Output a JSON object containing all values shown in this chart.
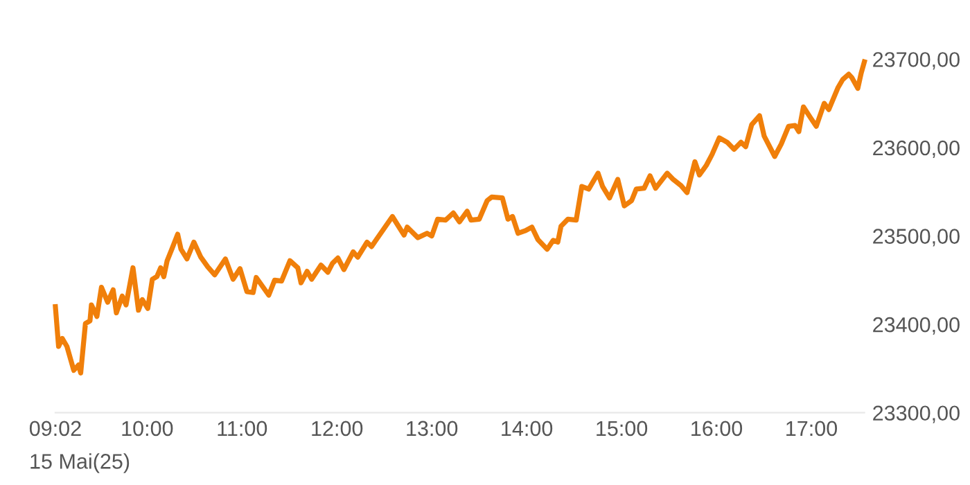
{
  "chart_data": {
    "type": "line",
    "color": "#f07f0a",
    "x": [
      9.0333,
      9.067,
      9.106,
      9.155,
      9.227,
      9.277,
      9.3,
      9.35,
      9.398,
      9.413,
      9.471,
      9.519,
      9.584,
      9.642,
      9.676,
      9.738,
      9.778,
      9.851,
      9.909,
      9.949,
      10.007,
      10.055,
      10.103,
      10.143,
      10.176,
      10.211,
      10.264,
      10.322,
      10.357,
      10.42,
      10.493,
      10.566,
      10.639,
      10.712,
      10.825,
      10.906,
      10.979,
      11.052,
      11.117,
      11.15,
      11.282,
      11.344,
      11.417,
      11.505,
      11.588,
      11.622,
      11.686,
      11.734,
      11.832,
      11.905,
      11.953,
      12.011,
      12.074,
      12.172,
      12.22,
      12.318,
      12.366,
      12.416,
      12.585,
      12.649,
      12.708,
      12.741,
      12.854,
      12.95,
      13.0,
      13.062,
      13.146,
      13.227,
      13.292,
      13.373,
      13.413,
      13.5,
      13.584,
      13.632,
      13.744,
      13.803,
      13.851,
      13.909,
      13.987,
      14.055,
      14.118,
      14.216,
      14.279,
      14.328,
      14.362,
      14.435,
      14.522,
      14.581,
      14.654,
      14.752,
      14.8,
      14.873,
      14.96,
      15.029,
      15.106,
      15.155,
      15.238,
      15.3,
      15.359,
      15.481,
      15.544,
      15.627,
      15.69,
      15.773,
      15.821,
      15.894,
      15.953,
      16.03,
      16.113,
      16.186,
      16.259,
      16.308,
      16.372,
      16.454,
      16.503,
      16.614,
      16.683,
      16.76,
      16.829,
      16.868,
      16.917,
      16.99,
      17.052,
      17.136,
      17.184,
      17.282,
      17.331,
      17.394,
      17.428,
      17.49,
      17.525,
      17.559
    ],
    "values": [
      23420,
      23375,
      23384,
      23375,
      23348,
      23354,
      23345,
      23401,
      23404,
      23422,
      23409,
      23442,
      23425,
      23439,
      23413,
      23432,
      23422,
      23464,
      23416,
      23428,
      23418,
      23451,
      23454,
      23464,
      23454,
      23472,
      23486,
      23502,
      23485,
      23474,
      23493,
      23476,
      23465,
      23456,
      23474,
      23451,
      23463,
      23437,
      23436,
      23453,
      23433,
      23450,
      23449,
      23472,
      23464,
      23447,
      23460,
      23451,
      23467,
      23459,
      23469,
      23475,
      23462,
      23482,
      23476,
      23493,
      23488,
      23496,
      23522,
      23511,
      23501,
      23510,
      23498,
      23503,
      23500,
      23519,
      23518,
      23526,
      23516,
      23528,
      23518,
      23519,
      23540,
      23544,
      23543,
      23519,
      23522,
      23503,
      23506,
      23510,
      23496,
      23485,
      23495,
      23493,
      23511,
      23519,
      23518,
      23556,
      23553,
      23571,
      23556,
      23543,
      23564,
      23534,
      23540,
      23553,
      23554,
      23568,
      23554,
      23571,
      23564,
      23557,
      23549,
      23584,
      23569,
      23580,
      23592,
      23611,
      23606,
      23598,
      23606,
      23601,
      23626,
      23636,
      23613,
      23590,
      23604,
      23624,
      23625,
      23618,
      23646,
      23634,
      23624,
      23650,
      23643,
      23668,
      23677,
      23683,
      23679,
      23667,
      23684,
      23697
    ],
    "xlim": [
      9.0333,
      17.559
    ],
    "xticks": [
      {
        "value": 9.0333,
        "label": "09:02"
      },
      {
        "value": 10,
        "label": "10:00"
      },
      {
        "value": 11,
        "label": "11:00"
      },
      {
        "value": 12,
        "label": "12:00"
      },
      {
        "value": 13,
        "label": "13:00"
      },
      {
        "value": 14,
        "label": "14:00"
      },
      {
        "value": 15,
        "label": "15:00"
      },
      {
        "value": 16,
        "label": "16:00"
      },
      {
        "value": 17,
        "label": "17:00"
      }
    ],
    "ylim": [
      23300,
      23700
    ],
    "yticks": [
      {
        "value": 23300,
        "label": "23300,00"
      },
      {
        "value": 23400,
        "label": "23400,00"
      },
      {
        "value": 23500,
        "label": "23500,00"
      },
      {
        "value": 23600,
        "label": "23600,00"
      },
      {
        "value": 23700,
        "label": "23700,00"
      }
    ],
    "annotations": [
      "15 Mai(25)"
    ],
    "grid": false,
    "legend": false,
    "marker": "none",
    "line_style": "solid"
  }
}
